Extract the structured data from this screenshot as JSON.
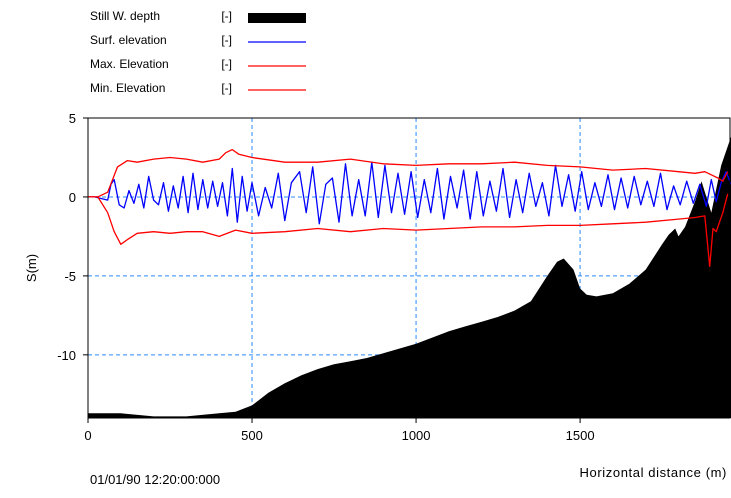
{
  "chart_data": {
    "type": "area",
    "title": "",
    "xlabel": "Horizontal distance (m)",
    "ylabel": "S(m)",
    "xlim": [
      0,
      1960
    ],
    "ylim": [
      -14,
      5
    ],
    "x_ticks": [
      0,
      500,
      1000,
      1500
    ],
    "y_ticks": [
      5,
      0,
      -5,
      -10
    ],
    "grid": true,
    "timestamp": "01/01/90 12:20:00:000",
    "legend_position": "top-left",
    "legend": [
      {
        "label": "Still W. depth",
        "unit": "[-]",
        "color": "#000000",
        "style": "filled"
      },
      {
        "label": "Surf. elevation",
        "unit": "[-]",
        "color": "#0000ff",
        "style": "line"
      },
      {
        "label": "Max. Elevation",
        "unit": "[-]",
        "color": "#ff0000",
        "style": "line"
      },
      {
        "label": "Min. Elevation",
        "unit": "[-]",
        "color": "#ff0000",
        "style": "line"
      }
    ],
    "series": [
      {
        "name": "Still W. depth",
        "x": [
          0,
          100,
          200,
          300,
          400,
          450,
          500,
          550,
          600,
          650,
          700,
          750,
          800,
          850,
          900,
          950,
          1000,
          1050,
          1100,
          1150,
          1200,
          1250,
          1300,
          1350,
          1400,
          1430,
          1450,
          1480,
          1500,
          1520,
          1550,
          1600,
          1650,
          1700,
          1750,
          1770,
          1790,
          1800,
          1820,
          1850,
          1870,
          1900,
          1930,
          1960
        ],
        "values": [
          -13.7,
          -13.7,
          -13.9,
          -13.9,
          -13.7,
          -13.6,
          -13.2,
          -12.4,
          -11.8,
          -11.3,
          -10.9,
          -10.6,
          -10.4,
          -10.2,
          -9.9,
          -9.6,
          -9.3,
          -8.9,
          -8.5,
          -8.2,
          -7.9,
          -7.6,
          -7.2,
          -6.6,
          -5.0,
          -4.1,
          -3.9,
          -4.6,
          -5.8,
          -6.2,
          -6.3,
          -6.1,
          -5.5,
          -4.6,
          -3.0,
          -2.4,
          -2.0,
          -2.5,
          -1.9,
          -0.3,
          1.0,
          -1.0,
          2.0,
          3.8
        ]
      },
      {
        "name": "Surf. elevation",
        "x": [
          0,
          20,
          40,
          60,
          70,
          80,
          95,
          110,
          125,
          140,
          155,
          170,
          185,
          200,
          215,
          230,
          245,
          260,
          275,
          290,
          305,
          320,
          335,
          350,
          365,
          380,
          395,
          410,
          425,
          440,
          455,
          470,
          485,
          500,
          520,
          540,
          560,
          580,
          600,
          620,
          645,
          665,
          685,
          705,
          725,
          745,
          765,
          785,
          805,
          825,
          845,
          865,
          885,
          905,
          925,
          945,
          965,
          985,
          1005,
          1025,
          1045,
          1065,
          1085,
          1105,
          1125,
          1145,
          1165,
          1185,
          1205,
          1225,
          1245,
          1265,
          1285,
          1305,
          1325,
          1345,
          1365,
          1385,
          1405,
          1425,
          1445,
          1465,
          1485,
          1505,
          1525,
          1545,
          1565,
          1585,
          1605,
          1625,
          1645,
          1665,
          1685,
          1705,
          1725,
          1745,
          1765,
          1785,
          1805,
          1825,
          1845,
          1865,
          1885,
          1900,
          1915,
          1930,
          1945,
          1960
        ],
        "values": [
          0,
          0,
          -0.1,
          -0.2,
          0.8,
          1.1,
          -0.5,
          -0.7,
          0.4,
          -0.4,
          0.8,
          -0.7,
          1.3,
          -0.2,
          -0.5,
          0.9,
          -0.9,
          0.7,
          -0.7,
          1.3,
          -1.0,
          1.5,
          -0.8,
          1.1,
          -0.7,
          1.0,
          -0.6,
          0.9,
          -1.2,
          1.8,
          -1.6,
          1.3,
          -0.9,
          0.9,
          -1.2,
          0.6,
          -0.7,
          1.5,
          -1.5,
          0.9,
          1.6,
          -1.0,
          1.9,
          -1.7,
          0.8,
          1.2,
          -1.6,
          2.1,
          -1.2,
          1.1,
          -1.2,
          2.2,
          -1.3,
          2.0,
          -1.0,
          1.5,
          -1.1,
          1.6,
          -1.3,
          1.1,
          -1.0,
          1.8,
          -1.4,
          1.3,
          -0.7,
          1.7,
          -1.4,
          1.6,
          -1.2,
          1.0,
          -0.9,
          1.8,
          -1.3,
          1.1,
          -1.0,
          1.5,
          -0.6,
          0.9,
          -1.2,
          2.0,
          -0.6,
          1.4,
          -0.9,
          1.6,
          -0.8,
          0.9,
          -0.6,
          1.4,
          -0.8,
          1.2,
          -0.7,
          1.3,
          -0.5,
          1.0,
          -0.6,
          1.5,
          -0.8,
          0.7,
          -0.5,
          1.0,
          -0.4,
          0.8,
          -0.6,
          1.1,
          -0.3,
          0.9,
          1.6,
          0.8
        ]
      },
      {
        "name": "Max. Elevation",
        "x": [
          0,
          30,
          60,
          90,
          120,
          150,
          200,
          250,
          300,
          350,
          400,
          420,
          440,
          460,
          500,
          600,
          700,
          800,
          900,
          1000,
          1100,
          1200,
          1300,
          1400,
          1500,
          1600,
          1700,
          1800,
          1850,
          1880,
          1900,
          1920,
          1935,
          1950
        ],
        "values": [
          0,
          0,
          0.3,
          1.9,
          2.3,
          2.2,
          2.4,
          2.5,
          2.4,
          2.2,
          2.4,
          2.8,
          3.0,
          2.7,
          2.5,
          2.2,
          2.2,
          2.4,
          2.1,
          2.0,
          2.1,
          2.1,
          2.2,
          2.0,
          1.9,
          1.7,
          1.8,
          1.6,
          1.5,
          1.6,
          1.4,
          1.2,
          1.0,
          1.6
        ]
      },
      {
        "name": "Min. Elevation",
        "x": [
          0,
          30,
          60,
          80,
          100,
          120,
          150,
          200,
          250,
          300,
          350,
          400,
          450,
          500,
          600,
          700,
          800,
          900,
          1000,
          1100,
          1200,
          1300,
          1400,
          1500,
          1600,
          1700,
          1800,
          1850,
          1880,
          1895,
          1905,
          1915,
          1935,
          1950
        ],
        "values": [
          0,
          0,
          -1.0,
          -2.2,
          -3.0,
          -2.7,
          -2.3,
          -2.2,
          -2.3,
          -2.2,
          -2.2,
          -2.5,
          -2.1,
          -2.3,
          -2.2,
          -2.0,
          -2.2,
          -2.0,
          -2.1,
          -2.0,
          -1.9,
          -1.9,
          -1.8,
          -1.8,
          -1.7,
          -1.6,
          -1.4,
          -1.3,
          -1.2,
          -4.4,
          -2.0,
          -2.2,
          -1.0,
          0.2
        ]
      }
    ]
  }
}
